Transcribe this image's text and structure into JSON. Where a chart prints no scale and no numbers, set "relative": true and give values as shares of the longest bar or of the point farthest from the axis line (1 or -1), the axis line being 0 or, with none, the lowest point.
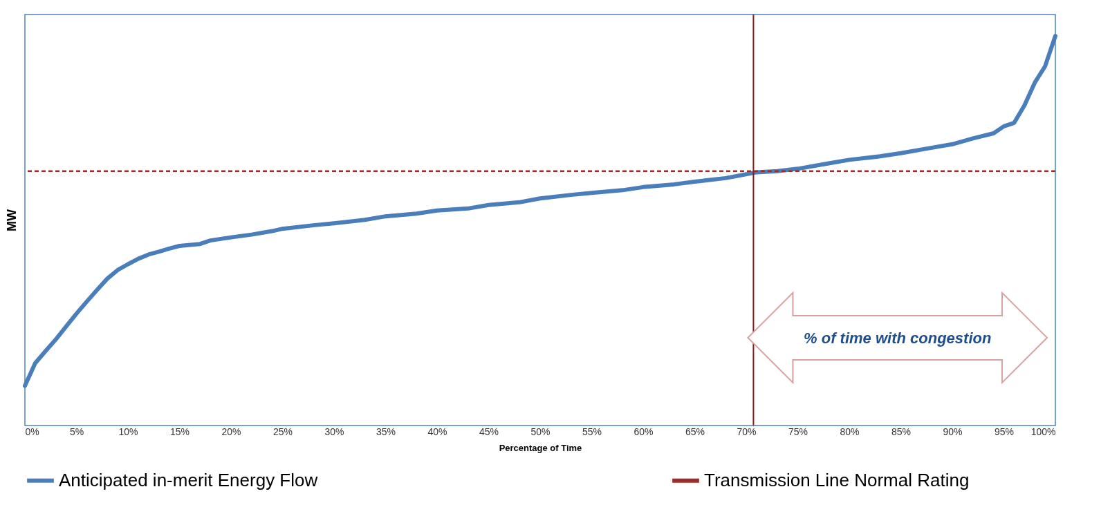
{
  "chart_data": {
    "type": "line",
    "relative": true,
    "ylabel": "MW",
    "xlabel": "Percentage of Time",
    "x": [
      0,
      1,
      2,
      3,
      4,
      5,
      6,
      7,
      8,
      9,
      10,
      11,
      12,
      13,
      14,
      15,
      17,
      18,
      20,
      22,
      24,
      25,
      28,
      30,
      33,
      35,
      38,
      40,
      43,
      45,
      48,
      50,
      53,
      55,
      58,
      60,
      63,
      65,
      68,
      71,
      73,
      75,
      78,
      80,
      83,
      85,
      88,
      90,
      92,
      94,
      95,
      96,
      97,
      98,
      99,
      100
    ],
    "xlim": [
      0,
      100
    ],
    "xticks": [
      {
        "value": 0,
        "label": "0%"
      },
      {
        "value": 5,
        "label": "5%"
      },
      {
        "value": 10,
        "label": "10%"
      },
      {
        "value": 15,
        "label": "15%"
      },
      {
        "value": 20,
        "label": "20%"
      },
      {
        "value": 25,
        "label": "25%"
      },
      {
        "value": 30,
        "label": "30%"
      },
      {
        "value": 35,
        "label": "35%"
      },
      {
        "value": 40,
        "label": "40%"
      },
      {
        "value": 45,
        "label": "45%"
      },
      {
        "value": 50,
        "label": "50%"
      },
      {
        "value": 55,
        "label": "55%"
      },
      {
        "value": 60,
        "label": "60%"
      },
      {
        "value": 65,
        "label": "65%"
      },
      {
        "value": 70,
        "label": "70%"
      },
      {
        "value": 75,
        "label": "75%"
      },
      {
        "value": 80,
        "label": "80%"
      },
      {
        "value": 85,
        "label": "85%"
      },
      {
        "value": 90,
        "label": "90%"
      },
      {
        "value": 95,
        "label": "95%"
      },
      {
        "value": 100,
        "label": "100%"
      }
    ],
    "series": [
      {
        "name": "Anticipated in-merit Energy Flow",
        "color": "#4a7ebb",
        "values": [
          0.102,
          0.16,
          0.191,
          0.221,
          0.254,
          0.287,
          0.318,
          0.348,
          0.377,
          0.399,
          0.414,
          0.428,
          0.439,
          0.446,
          0.454,
          0.461,
          0.466,
          0.475,
          0.483,
          0.49,
          0.499,
          0.505,
          0.514,
          0.519,
          0.528,
          0.537,
          0.544,
          0.552,
          0.557,
          0.566,
          0.573,
          0.583,
          0.592,
          0.597,
          0.604,
          0.612,
          0.619,
          0.626,
          0.635,
          0.65,
          0.653,
          0.659,
          0.673,
          0.682,
          0.691,
          0.699,
          0.713,
          0.722,
          0.737,
          0.75,
          0.768,
          0.777,
          0.822,
          0.88,
          0.922,
          1.0
        ]
      }
    ],
    "ref_lines": [
      {
        "axis": "y",
        "value": 0.653,
        "label": "Transmission Line Normal Rating",
        "color": "#a02b2b",
        "line_style": "dashed"
      },
      {
        "axis": "x",
        "value": 70.7,
        "color": "#8b1a1a",
        "line_style": "solid"
      }
    ],
    "annotations": [
      "% of time with congestion"
    ],
    "grid": false,
    "legend": "bottom"
  }
}
